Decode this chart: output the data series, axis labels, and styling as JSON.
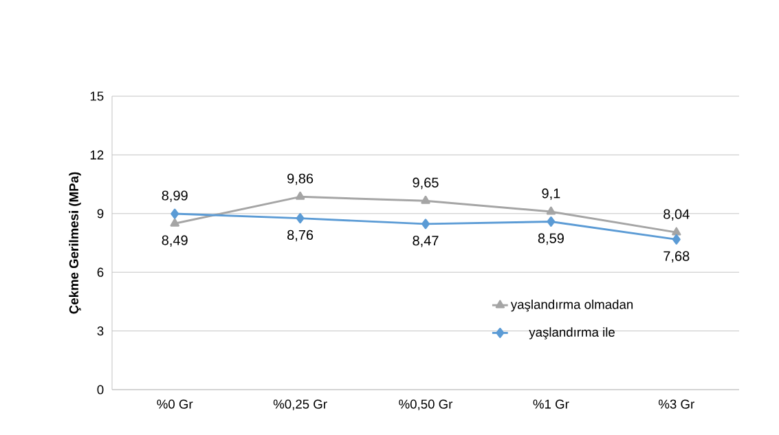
{
  "chart_data": {
    "type": "line",
    "ylabel": "Çekme Gerilmesi  (MPa)",
    "categories": [
      "%0 Gr",
      "%0,25 Gr",
      "%0,50 Gr",
      "%1 Gr",
      "%3 Gr"
    ],
    "series": [
      {
        "name": "yaşlandırma olmadan",
        "color": "#a5a5a5",
        "marker": "triangle",
        "values": [
          8.49,
          9.86,
          9.65,
          9.1,
          8.04
        ],
        "value_labels": [
          "8,49",
          "9,86",
          "9,65",
          "9,1",
          "8,04"
        ]
      },
      {
        "name": "yaşlandırma ile",
        "color": "#5b9bd5",
        "marker": "diamond",
        "values": [
          8.99,
          8.76,
          8.47,
          8.59,
          7.68
        ],
        "value_labels": [
          "8,99",
          "8,76",
          "8,47",
          "8,59",
          "7,68"
        ]
      }
    ],
    "ylim": [
      0,
      15
    ],
    "yticks": [
      0,
      3,
      6,
      9,
      12,
      15
    ],
    "grid": "y",
    "legend": "right"
  }
}
